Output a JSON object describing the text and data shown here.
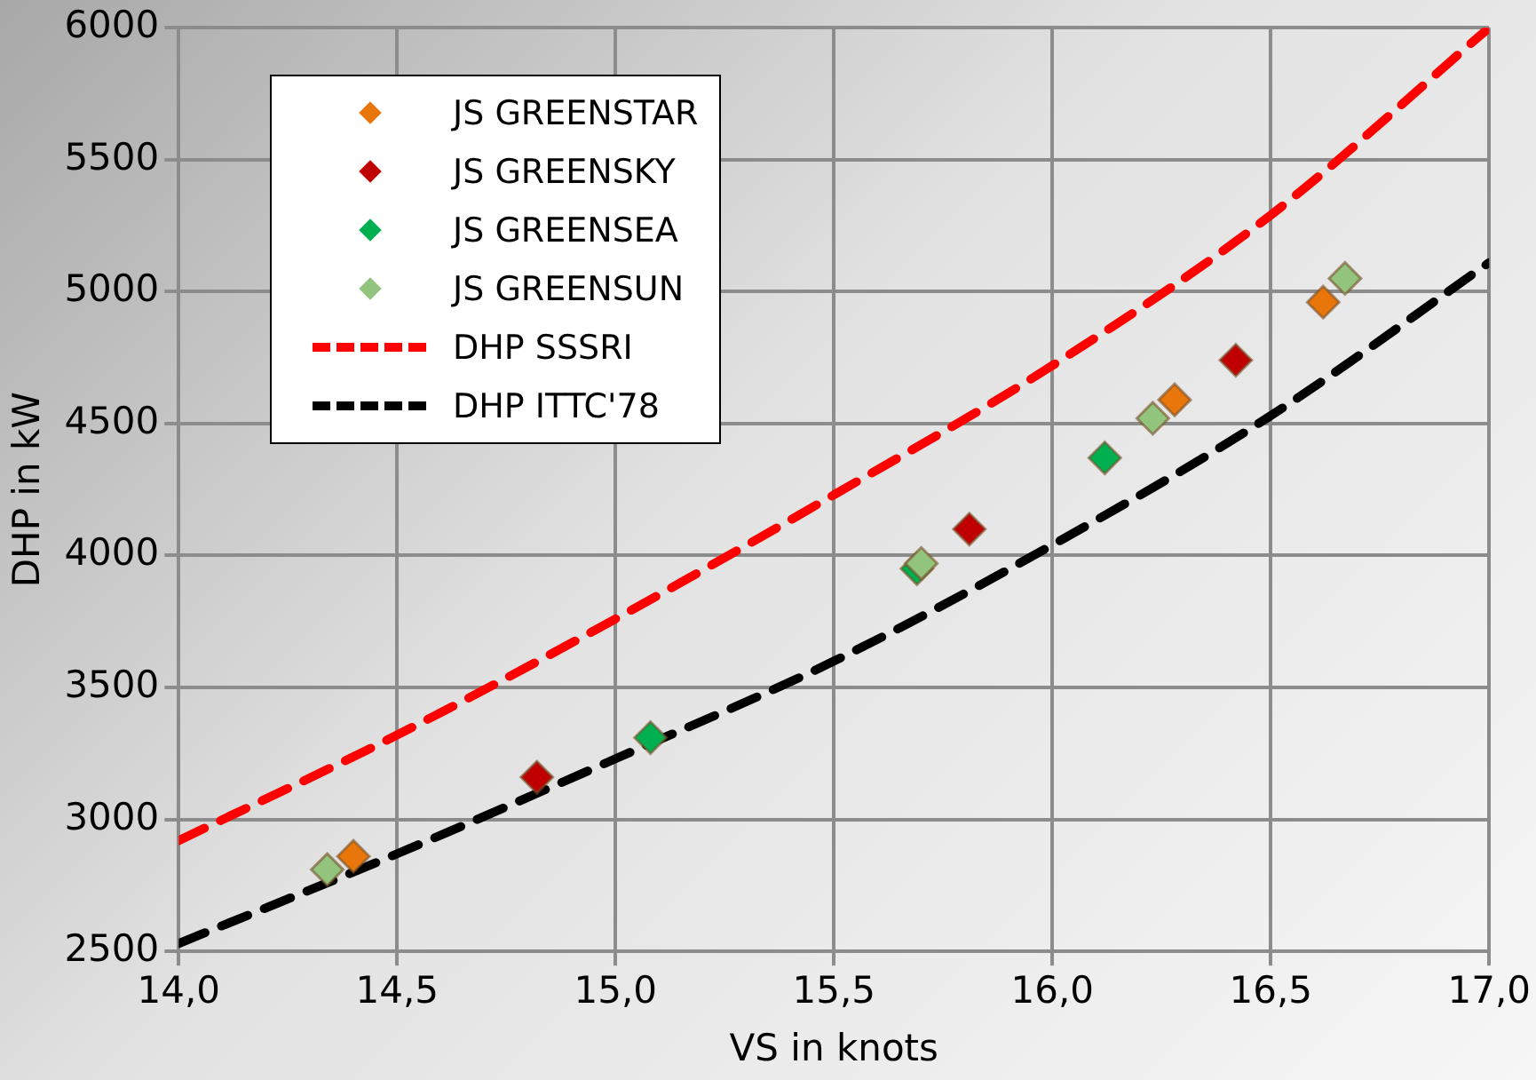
{
  "chart_data": {
    "type": "scatter",
    "xlabel": "VS in knots",
    "ylabel": "DHP in kW",
    "xlim": [
      14,
      17
    ],
    "xticks": [
      {
        "value": 14,
        "label": "14,0"
      },
      {
        "value": 14.5,
        "label": "14,5"
      },
      {
        "value": 15,
        "label": "15,0"
      },
      {
        "value": 15.5,
        "label": "15,5"
      },
      {
        "value": 16,
        "label": "16,0"
      },
      {
        "value": 16.5,
        "label": "16,5"
      },
      {
        "value": 17,
        "label": "17,0"
      }
    ],
    "ylim": [
      2500,
      6000
    ],
    "yticks": [
      2500,
      3000,
      3500,
      4000,
      4500,
      5000,
      5500,
      6000
    ],
    "grid": true,
    "legend": "top left",
    "series": [
      {
        "name": "JS GREENSTAR",
        "color": "#e8760a",
        "marker": "diamond",
        "x": [
          14.4,
          16.28,
          16.62
        ],
        "values": [
          2860,
          4590,
          4960
        ]
      },
      {
        "name": "JS GREENSKY",
        "color": "#c00000",
        "marker": "diamond",
        "x": [
          14.82,
          15.81,
          16.42
        ],
        "values": [
          3160,
          4100,
          4740
        ]
      },
      {
        "name": "JS GREENSEA",
        "color": "#00b050",
        "marker": "diamond",
        "x": [
          15.08,
          15.69,
          16.12
        ],
        "values": [
          3310,
          3950,
          4370
        ]
      },
      {
        "name": "JS GREENSUN",
        "color": "#92c47d",
        "marker": "diamond",
        "x": [
          14.34,
          15.7,
          16.23,
          16.67
        ],
        "values": [
          2810,
          3970,
          4520,
          5050
        ]
      },
      {
        "name": "DHP SSSRI",
        "type": "line",
        "color": "#ff0000",
        "marker": "none",
        "line_style": "dashed",
        "x": [
          14.0,
          14.5,
          15.0,
          15.5,
          16.0,
          16.5,
          17.0
        ],
        "values": [
          2920,
          3320,
          3760,
          4230,
          4720,
          5290,
          6000
        ]
      },
      {
        "name": "DHP ITTC'78",
        "type": "line",
        "color": "#000000",
        "marker": "none",
        "line_style": "dashed",
        "x": [
          14.0,
          14.5,
          15.0,
          15.5,
          16.0,
          16.5,
          17.0
        ],
        "values": [
          2530,
          2870,
          3230,
          3600,
          4040,
          4530,
          5110
        ]
      }
    ]
  }
}
